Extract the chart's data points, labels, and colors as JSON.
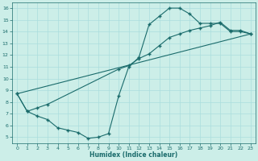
{
  "xlabel": "Humidex (Indice chaleur)",
  "bg_color": "#cceee8",
  "line_color": "#1a6b6b",
  "grid_color": "#aadddd",
  "xlim": [
    -0.5,
    23.5
  ],
  "ylim": [
    4.5,
    16.5
  ],
  "xticks": [
    0,
    1,
    2,
    3,
    4,
    5,
    6,
    7,
    8,
    9,
    10,
    11,
    12,
    13,
    14,
    15,
    16,
    17,
    18,
    19,
    20,
    21,
    22,
    23
  ],
  "yticks": [
    5,
    6,
    7,
    8,
    9,
    10,
    11,
    12,
    13,
    14,
    15,
    16
  ],
  "line1_x": [
    0,
    1,
    2,
    3,
    4,
    5,
    6,
    7,
    8,
    9,
    10,
    11,
    12,
    13,
    14,
    15,
    16,
    17,
    18,
    19,
    20,
    21,
    22,
    23
  ],
  "line1_y": [
    8.7,
    7.2,
    6.8,
    6.5,
    5.8,
    5.6,
    5.4,
    4.9,
    5.0,
    5.3,
    8.5,
    11.0,
    11.8,
    14.6,
    15.3,
    16.0,
    16.0,
    15.5,
    14.7,
    14.7,
    14.7,
    14.0,
    14.0,
    13.8
  ],
  "line2_x": [
    0,
    1,
    2,
    3,
    10,
    11,
    12,
    13,
    14,
    15,
    16,
    17,
    18,
    19,
    20,
    21,
    22,
    23
  ],
  "line2_y": [
    8.7,
    7.2,
    7.5,
    7.8,
    10.8,
    11.1,
    11.7,
    12.1,
    12.8,
    13.5,
    13.8,
    14.1,
    14.3,
    14.5,
    14.8,
    14.1,
    14.1,
    13.8
  ],
  "line3_x": [
    0,
    23
  ],
  "line3_y": [
    8.7,
    13.8
  ]
}
